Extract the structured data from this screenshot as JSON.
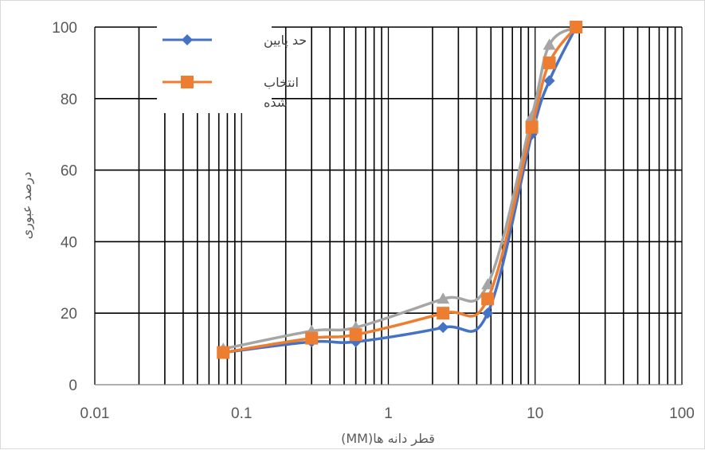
{
  "chart_data": {
    "type": "line",
    "x_scale": "log",
    "xlim": [
      0.01,
      100
    ],
    "ylim": [
      0,
      100
    ],
    "x_ticks": [
      "0.01",
      "0.1",
      "1",
      "10",
      "100"
    ],
    "y_ticks": [
      "0",
      "20",
      "40",
      "60",
      "80",
      "100"
    ],
    "xlabel": "قطر دانه ها(MM)",
    "ylabel": "درصد عبوری",
    "grid": true,
    "legend_position": "top-left",
    "series": [
      {
        "name": "حد پایین",
        "color": "#4472c4",
        "marker": "diamond",
        "x": [
          0.075,
          0.3,
          0.6,
          2.36,
          4.75,
          9.5,
          12.5,
          19
        ],
        "y": [
          9,
          12,
          12,
          16,
          20,
          70,
          85,
          100
        ]
      },
      {
        "name": "",
        "color": "#a5a5a5",
        "marker": "triangle",
        "x": [
          0.075,
          0.3,
          0.6,
          2.36,
          4.75,
          9.5,
          12.5,
          19
        ],
        "y": [
          10,
          15,
          16,
          24,
          28,
          75,
          95,
          100
        ]
      },
      {
        "name": "انتخاب شده",
        "color": "#ed7d31",
        "marker": "square",
        "x": [
          0.075,
          0.3,
          0.6,
          2.36,
          4.75,
          9.5,
          12.5,
          19
        ],
        "y": [
          9,
          13,
          14,
          20,
          24,
          72,
          90,
          100
        ]
      }
    ]
  },
  "legend": {
    "item1_label": "حد پایین",
    "item2_line1": "انتخاب",
    "item2_line2": "شده"
  }
}
